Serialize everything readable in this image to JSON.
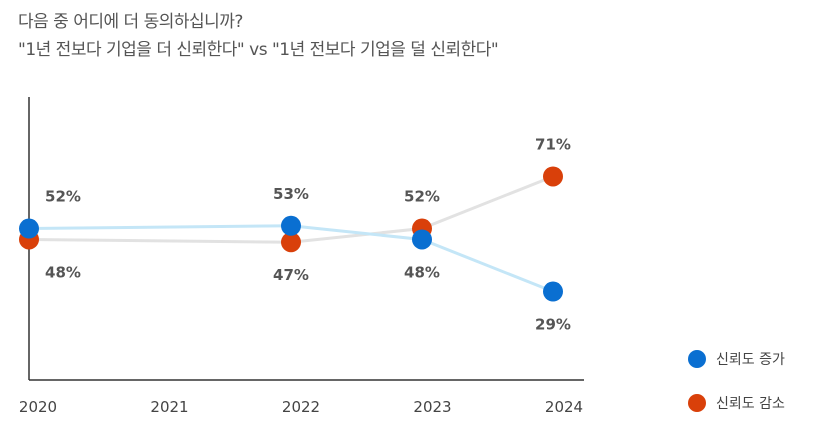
{
  "chart_data": {
    "type": "line",
    "title": [
      "다음 중 어디에 더 동의하십니까?",
      "\"1년 전보다 기업을 더 신뢰한다\" vs \"1년 전보다 기업을 덜 신뢰한다\""
    ],
    "x_ticks": [
      "2020",
      "2021",
      "2022",
      "2023",
      "2024"
    ],
    "legend_position": "right",
    "grid": false,
    "series": [
      {
        "name": "신뢰도 증가",
        "color": "#0a6fd1",
        "line_color": "#c4e6f7",
        "points": [
          {
            "x": 2020,
            "y": 52,
            "label": "52%"
          },
          {
            "x": 2022,
            "y": 53,
            "label": "53%"
          },
          {
            "x": 2023,
            "y": 48,
            "label": "48%"
          },
          {
            "x": 2024,
            "y": 29,
            "label": "29%"
          }
        ]
      },
      {
        "name": "신뢰도 감소",
        "color": "#d9400a",
        "line_color": "#e2e2e2",
        "points": [
          {
            "x": 2020,
            "y": 48,
            "label": "48%"
          },
          {
            "x": 2022,
            "y": 47,
            "label": "47%"
          },
          {
            "x": 2023,
            "y": 52,
            "label": "52%"
          },
          {
            "x": 2024,
            "y": 71,
            "label": "71%"
          }
        ]
      }
    ]
  }
}
